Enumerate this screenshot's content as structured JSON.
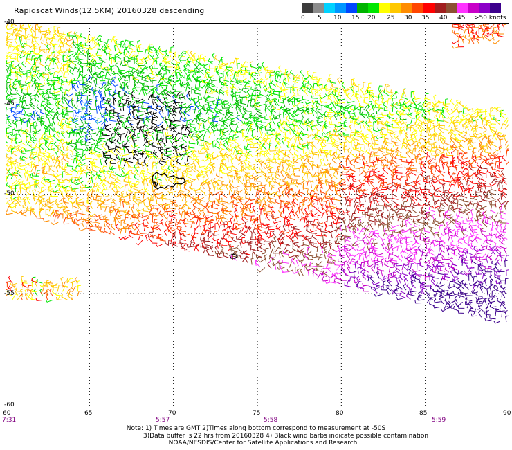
{
  "header": {
    "title": "Rapidscat Winds(12.5KM) 20160328 descending"
  },
  "colorbar": {
    "colors": [
      "#3c3c3c",
      "#8c8c8c",
      "#00d2ff",
      "#0096ff",
      "#0046ff",
      "#00b400",
      "#00e600",
      "#ffff00",
      "#ffc800",
      "#ff8c00",
      "#ff4600",
      "#ff0000",
      "#a01e1e",
      "#8c5032",
      "#ff32ff",
      "#c800c8",
      "#8c00c8",
      "#3c008c"
    ],
    "labels": [
      "0",
      "5",
      "10",
      "15",
      "20",
      "25",
      "30",
      "35",
      "40",
      "45",
      ">50 knots"
    ]
  },
  "axes": {
    "lat_labels": [
      "-40",
      "-45",
      "-50",
      "-55",
      "-60"
    ],
    "lon_labels": [
      "60",
      "65",
      "70",
      "75",
      "80",
      "85",
      "90"
    ],
    "time_labels": [
      "7:31",
      "5:57",
      "5:58",
      "5:59"
    ]
  },
  "map": {
    "lon_range": [
      60,
      90
    ],
    "lat_range": [
      -60,
      -40
    ],
    "island_names": [],
    "swath_wind_knots_range": [
      0,
      50
    ]
  },
  "notes": {
    "line1": "Note: 1) Times are GMT 2)Times along bottom correspond to measurement at -50S",
    "line2": "3)Data buffer is 22 hrs from 20160328 4) Black wind barbs indicate possible contamination",
    "line3": "NOAA/NESDIS/Center for Satellite Applications and Research"
  }
}
